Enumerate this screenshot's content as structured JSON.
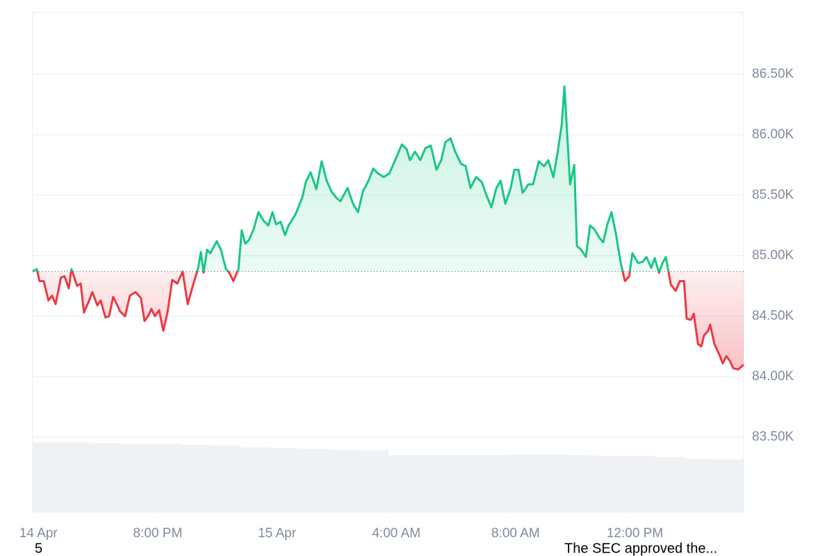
{
  "chart_data": {
    "type": "line",
    "x": [
      15.97,
      16.11,
      16.2,
      16.34,
      16.5,
      16.62,
      16.74,
      16.92,
      17.04,
      17.18,
      17.27,
      17.46,
      17.58,
      17.69,
      17.83,
      17.97,
      18.14,
      18.25,
      18.41,
      18.53,
      18.67,
      18.79,
      18.9,
      19.07,
      19.23,
      19.42,
      19.6,
      19.72,
      19.84,
      19.95,
      20.07,
      20.21,
      20.35,
      20.49,
      20.65,
      20.82,
      21.0,
      21.17,
      21.35,
      21.52,
      21.61,
      21.7,
      21.82,
      21.93,
      22.14,
      22.28,
      22.45,
      22.56,
      22.7,
      22.87,
      22.98,
      23.1,
      23.22,
      23.38,
      23.54,
      23.71,
      23.87,
      24.01,
      24.13,
      24.29,
      24.43,
      24.55,
      24.78,
      25.01,
      25.13,
      25.29,
      25.48,
      25.66,
      25.83,
      25.99,
      26.15,
      26.29,
      26.53,
      26.71,
      26.88,
      27.04,
      27.23,
      27.39,
      27.55,
      27.74,
      27.93,
      28.11,
      28.35,
      28.51,
      28.62,
      28.79,
      28.97,
      29.14,
      29.32,
      29.51,
      29.67,
      29.81,
      29.98,
      30.14,
      30.33,
      30.49,
      30.65,
      30.84,
      31.03,
      31.17,
      31.35,
      31.52,
      31.66,
      31.82,
      32.0,
      32.12,
      32.26,
      32.4,
      32.59,
      32.75,
      32.94,
      33.12,
      33.26,
      33.43,
      33.57,
      33.71,
      33.8,
      33.99,
      34.13,
      34.22,
      34.36,
      34.52,
      34.66,
      34.8,
      34.97,
      35.1,
      35.24,
      35.38,
      35.52,
      35.69,
      35.83,
      35.97,
      36.08,
      36.27,
      36.43,
      36.55,
      36.71,
      36.83,
      36.97,
      37.09,
      37.2,
      37.37,
      37.53,
      37.67,
      37.81,
      37.9,
      38.04,
      38.14,
      38.28,
      38.39,
      38.48,
      38.62,
      38.69,
      38.83,
      39.0,
      39.11,
      39.23,
      39.35,
      39.46,
      39.63,
      39.81
    ],
    "values": [
      84870,
      84890,
      84790,
      84790,
      84630,
      84670,
      84600,
      84820,
      84830,
      84730,
      84890,
      84750,
      84770,
      84530,
      84610,
      84700,
      84590,
      84630,
      84490,
      84500,
      84660,
      84600,
      84540,
      84500,
      84670,
      84700,
      84650,
      84460,
      84500,
      84560,
      84500,
      84550,
      84380,
      84530,
      84800,
      84770,
      84870,
      84600,
      84760,
      84900,
      85030,
      84860,
      85050,
      85020,
      85120,
      85050,
      84890,
      84860,
      84790,
      84890,
      85210,
      85100,
      85130,
      85220,
      85360,
      85290,
      85250,
      85360,
      85260,
      85280,
      85170,
      85250,
      85340,
      85480,
      85610,
      85690,
      85550,
      85780,
      85620,
      85530,
      85480,
      85450,
      85560,
      85430,
      85360,
      85530,
      85620,
      85720,
      85680,
      85650,
      85680,
      85780,
      85920,
      85880,
      85790,
      85860,
      85790,
      85890,
      85910,
      85710,
      85790,
      85940,
      85970,
      85860,
      85760,
      85740,
      85560,
      85650,
      85610,
      85510,
      85400,
      85560,
      85620,
      85430,
      85560,
      85710,
      85710,
      85520,
      85590,
      85590,
      85780,
      85740,
      85790,
      85650,
      85850,
      86080,
      86400,
      85590,
      85750,
      85080,
      85050,
      84990,
      85250,
      85220,
      85150,
      85110,
      85260,
      85360,
      85190,
      84940,
      84790,
      84830,
      85020,
      84940,
      84950,
      84990,
      84900,
      84980,
      84860,
      84940,
      84990,
      84760,
      84710,
      84790,
      84790,
      84480,
      84470,
      84520,
      84270,
      84250,
      84340,
      84380,
      84430,
      84270,
      84180,
      84110,
      84170,
      84130,
      84070,
      84060,
      84100
    ],
    "baseline": 84870,
    "up_color": "#16c784",
    "down_color": "#ea3943",
    "xlim": [
      15.97,
      39.81
    ],
    "xticks": [
      {
        "value": 16,
        "label": "14 Apr"
      },
      {
        "value": 20,
        "label": "8:00 PM"
      },
      {
        "value": 24,
        "label": "15 Apr"
      },
      {
        "value": 28,
        "label": "4:00 AM"
      },
      {
        "value": 32,
        "label": "8:00 AM"
      },
      {
        "value": 36,
        "label": "12:00 PM"
      }
    ],
    "ylim": [
      82880,
      87010
    ],
    "yticks": [
      {
        "value": 83500,
        "label": "83.50K"
      },
      {
        "value": 84000,
        "label": "84.00K"
      },
      {
        "value": 84500,
        "label": "84.50K"
      },
      {
        "value": 85000,
        "label": "85.00K"
      },
      {
        "value": 85500,
        "label": "85.50K"
      },
      {
        "value": 86000,
        "label": "86.00K"
      },
      {
        "value": 86500,
        "label": "86.50K"
      }
    ],
    "grid": true,
    "volume": {
      "color": "#eff2f5",
      "ylim": [
        0,
        100
      ],
      "values": [
        86,
        86,
        85,
        84,
        84,
        83,
        82,
        80,
        79,
        78,
        77,
        76,
        70,
        70,
        70,
        70,
        71,
        71,
        70,
        69,
        69,
        68,
        66,
        65
      ]
    },
    "annotations": [
      "5",
      "The SEC approved the..."
    ]
  }
}
